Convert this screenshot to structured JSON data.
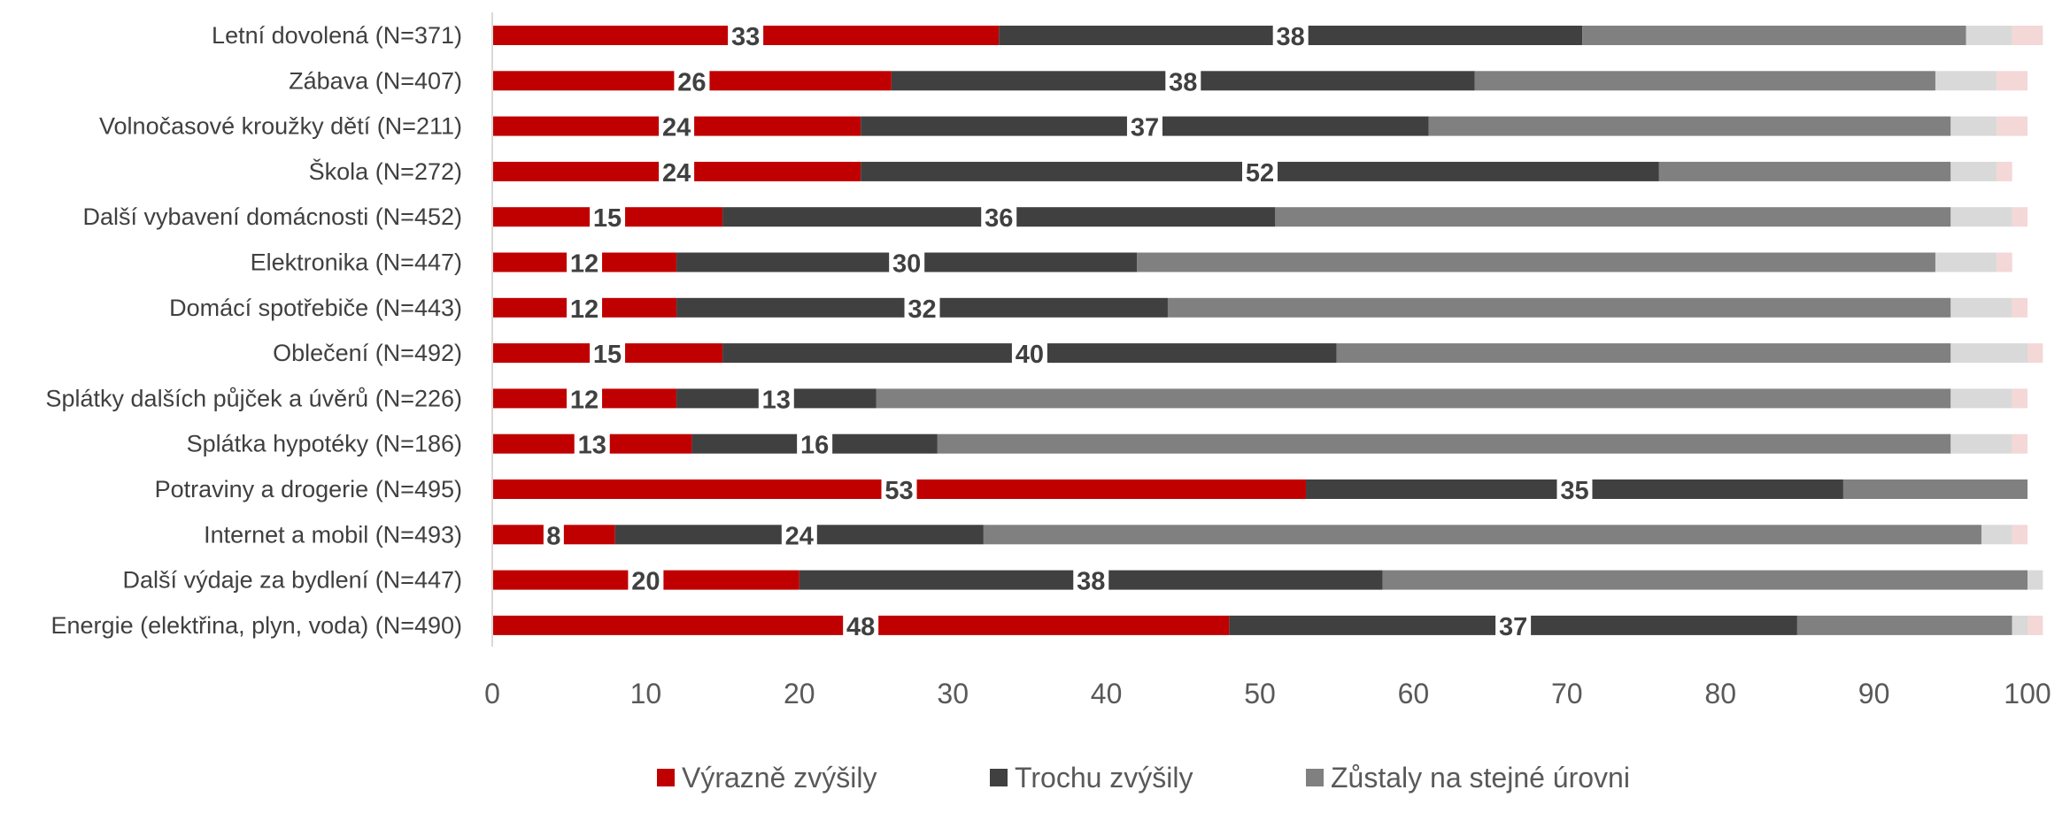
{
  "chart_data": {
    "type": "bar",
    "orientation": "horizontal",
    "stacked": true,
    "categories": [
      "Letní dovolená (N=371)",
      "Zábava (N=407)",
      "Volnočasové kroužky dětí (N=211)",
      "Škola (N=272)",
      "Další vybavení domácnosti (N=452)",
      "Elektronika (N=447)",
      "Domácí spotřebiče (N=443)",
      "Oblečení (N=492)",
      "Splátky dalších půjček a úvěrů (N=226)",
      "Splátka hypotéky (N=186)",
      "Potraviny a drogerie (N=495)",
      "Internet a mobil (N=493)",
      "Další výdaje za bydlení (N=447)",
      "Energie (elektřina, plyn, voda) (N=490)"
    ],
    "series": [
      {
        "name": "Výrazně zvýšily",
        "color": "#C00000",
        "values": [
          33,
          26,
          24,
          24,
          15,
          12,
          12,
          15,
          12,
          13,
          53,
          8,
          20,
          48
        ],
        "labels": [
          "33",
          "26",
          "24",
          "24",
          "15",
          "12",
          "12",
          "15",
          "12",
          "13",
          "53",
          "8",
          "20",
          "48"
        ]
      },
      {
        "name": "Trochu zvýšily",
        "color": "#404040",
        "values": [
          38,
          38,
          37,
          52,
          36,
          30,
          32,
          40,
          13,
          16,
          35,
          24,
          38,
          37
        ],
        "labels": [
          "38",
          "38",
          "37",
          "52",
          "36",
          "30",
          "32",
          "40",
          "13",
          "16",
          "35",
          "24",
          "38",
          "37"
        ]
      },
      {
        "name": "Zůstaly na stejné úrovni",
        "color": "#808080",
        "values": [
          25,
          30,
          34,
          19,
          44,
          52,
          51,
          40,
          70,
          66,
          12,
          65,
          42,
          14
        ]
      },
      {
        "name": "",
        "color": "#D9D9D9",
        "values": [
          3,
          4,
          3,
          3,
          4,
          4,
          4,
          5,
          4,
          4,
          0,
          2,
          1,
          1
        ]
      },
      {
        "name": "",
        "color": "#F4D7D7",
        "values": [
          2,
          2,
          2,
          1,
          1,
          1,
          1,
          1,
          1,
          1,
          0,
          1,
          0,
          1
        ]
      }
    ],
    "xlim": [
      0,
      100
    ],
    "xticks": [
      "0",
      "10",
      "20",
      "30",
      "40",
      "50",
      "60",
      "70",
      "80",
      "90",
      "100"
    ],
    "grid": false,
    "legend_position": "bottom"
  }
}
